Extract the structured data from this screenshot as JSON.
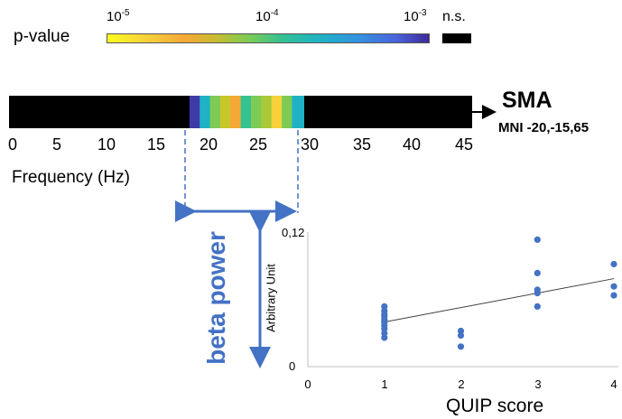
{
  "colorbar": {
    "label": "p-value",
    "tick_min_base": "10",
    "tick_min_exp": "-5",
    "tick_mid_base": "10",
    "tick_mid_exp": "-4",
    "tick_max_base": "10",
    "tick_max_exp": "-3",
    "ns_label": "n.s."
  },
  "spectrum": {
    "x_ticks": [
      "0",
      "5",
      "10",
      "15",
      "20",
      "25",
      "30",
      "35",
      "40",
      "45"
    ],
    "xlabel": "Frequency (Hz)",
    "region": "SMA",
    "mni": "MNI -20,-15,65",
    "band_label": "beta power",
    "band_start_hz": 18,
    "band_end_hz": 29,
    "cells": [
      {
        "hz": 18,
        "color": "#3e3aa8"
      },
      {
        "hz": 19,
        "color": "#1fb2c4"
      },
      {
        "hz": 20,
        "color": "#7dcb55"
      },
      {
        "hz": 21,
        "color": "#c9c62c"
      },
      {
        "hz": 22,
        "color": "#f6a837"
      },
      {
        "hz": 23,
        "color": "#35c291"
      },
      {
        "hz": 24,
        "color": "#7dcb55"
      },
      {
        "hz": 25,
        "color": "#a9c93b"
      },
      {
        "hz": 26,
        "color": "#f7d13a"
      },
      {
        "hz": 27,
        "color": "#7dcb55"
      },
      {
        "hz": 28,
        "color": "#1fb2c4"
      }
    ]
  },
  "chart_data": {
    "type": "scatter",
    "xlabel": "QUIP score",
    "ylabel": "Arbitrary Unit",
    "x_ticks": [
      "0",
      "1",
      "2",
      "3",
      "4"
    ],
    "y_ticks": [
      "0",
      "0,12"
    ],
    "xlim": [
      0,
      4
    ],
    "ylim": [
      0,
      0.12
    ],
    "points": [
      {
        "x": 1,
        "y": 0.054
      },
      {
        "x": 1,
        "y": 0.05
      },
      {
        "x": 1,
        "y": 0.047
      },
      {
        "x": 1,
        "y": 0.045
      },
      {
        "x": 1,
        "y": 0.042
      },
      {
        "x": 1,
        "y": 0.04
      },
      {
        "x": 1,
        "y": 0.037
      },
      {
        "x": 1,
        "y": 0.034
      },
      {
        "x": 1,
        "y": 0.03
      },
      {
        "x": 1,
        "y": 0.026
      },
      {
        "x": 2,
        "y": 0.032
      },
      {
        "x": 2,
        "y": 0.028
      },
      {
        "x": 2,
        "y": 0.018
      },
      {
        "x": 3,
        "y": 0.114
      },
      {
        "x": 3,
        "y": 0.084
      },
      {
        "x": 3,
        "y": 0.069
      },
      {
        "x": 3,
        "y": 0.066
      },
      {
        "x": 3,
        "y": 0.054
      },
      {
        "x": 4,
        "y": 0.092
      },
      {
        "x": 4,
        "y": 0.072
      },
      {
        "x": 4,
        "y": 0.064
      }
    ],
    "trendline": {
      "x1": 1,
      "y1": 0.04,
      "x2": 4,
      "y2": 0.079
    },
    "colors": {
      "points": "#4472c4",
      "trend": "#404040"
    }
  }
}
